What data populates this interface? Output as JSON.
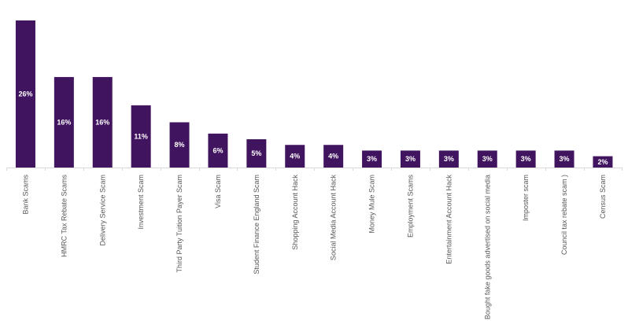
{
  "chart_data": {
    "type": "bar",
    "title": "",
    "xlabel": "",
    "ylabel": "",
    "ylim": [
      0,
      26
    ],
    "grid": false,
    "bar_color": "#41145f",
    "categories": [
      "Bank Scams",
      "HMRC Tax Rebate Scams",
      "Delivery Service Scam",
      "Investment Scam",
      "Third Party Tuition Payer Scam",
      "Visa Scam",
      "Student Finance England Scam",
      "Shopping Account Hack",
      "Social Media Account Hack",
      "Money Mule Scam",
      "Employment Scams",
      "Entertainment Account Hack",
      "Bought fake goods advertised on social media",
      "Imposter scam",
      "Council tax rebate scam )",
      "Census Scam"
    ],
    "values": [
      26,
      16,
      16,
      11,
      8,
      6,
      5,
      4,
      4,
      3,
      3,
      3,
      3,
      3,
      3,
      2
    ],
    "data_labels": [
      "26%",
      "16%",
      "16%",
      "11%",
      "8%",
      "6%",
      "5%",
      "4%",
      "4%",
      "3%",
      "3%",
      "3%",
      "3%",
      "3%",
      "3%",
      "2%"
    ]
  }
}
